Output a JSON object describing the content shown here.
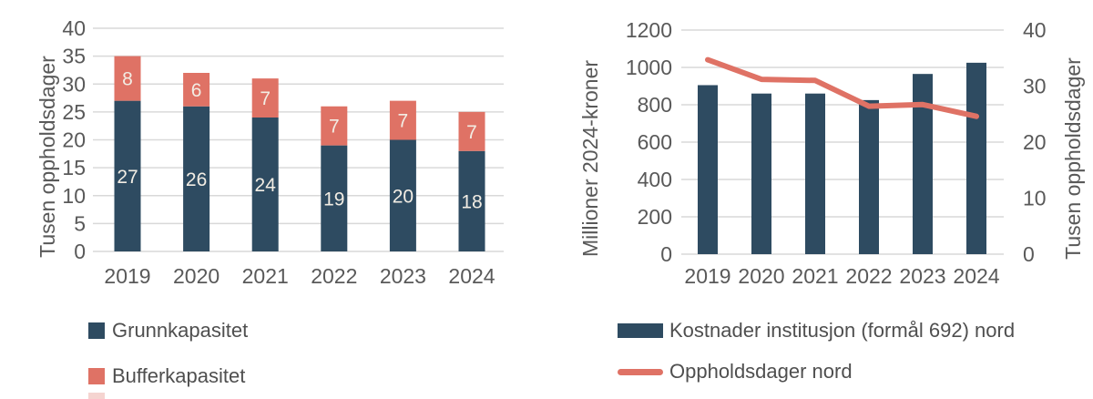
{
  "colors": {
    "navy": "#2E4B61",
    "salmon": "#DF7265",
    "gridline": "#D9D9D9",
    "axis_text": "#595959",
    "legend_text": "#4F4F4F",
    "bar_label_text": "#F2EDE4",
    "background": "#FFFFFF"
  },
  "chart_data": [
    {
      "type": "bar",
      "subtype": "stacked-column",
      "title": "",
      "xlabel": "",
      "ylabel": "Tusen oppholdsdager",
      "ylim": [
        0,
        40
      ],
      "yticks": [
        0,
        5,
        10,
        15,
        20,
        25,
        30,
        35,
        40
      ],
      "grid": true,
      "legend_position": "bottom-left",
      "categories": [
        "2019",
        "2020",
        "2021",
        "2022",
        "2023",
        "2024"
      ],
      "series": [
        {
          "name": "Grunnkapasitet",
          "color": "navy",
          "swatch": "square",
          "values": [
            27,
            26,
            24,
            19,
            20,
            18
          ],
          "labels": [
            "27",
            "26",
            "24",
            "19",
            "20",
            "18"
          ]
        },
        {
          "name": "Bufferkapasitet",
          "color": "salmon",
          "swatch": "square",
          "values": [
            8,
            6,
            7,
            7,
            7,
            7
          ],
          "labels": [
            "8",
            "6",
            "7",
            "7",
            "7",
            "7"
          ]
        }
      ]
    },
    {
      "type": "bar",
      "subtype": "combo-bar-line",
      "title": "",
      "xlabel": "",
      "ylabel_left": "Millioner 2024-kroner",
      "ylabel_right": "Tusen oppholdsdager",
      "ylim_left": [
        0,
        1200
      ],
      "ylim_right": [
        0,
        40
      ],
      "yticks_left": [
        0,
        200,
        400,
        600,
        800,
        1000,
        1200
      ],
      "yticks_right": [
        0,
        10,
        20,
        30,
        40
      ],
      "grid": true,
      "legend_position": "bottom-left",
      "categories": [
        "2019",
        "2020",
        "2021",
        "2022",
        "2023",
        "2024"
      ],
      "series": [
        {
          "type": "bar",
          "name": "Kostnader institusjon (formål 692) nord",
          "axis": "left",
          "color": "navy",
          "swatch": "bar",
          "values": [
            905,
            860,
            860,
            825,
            965,
            1025
          ]
        },
        {
          "type": "line",
          "name": "Oppholdsdager nord",
          "axis": "right",
          "color": "salmon",
          "swatch": "line",
          "values": [
            34.7,
            31.2,
            31.0,
            26.4,
            26.7,
            24.6
          ]
        }
      ]
    }
  ]
}
